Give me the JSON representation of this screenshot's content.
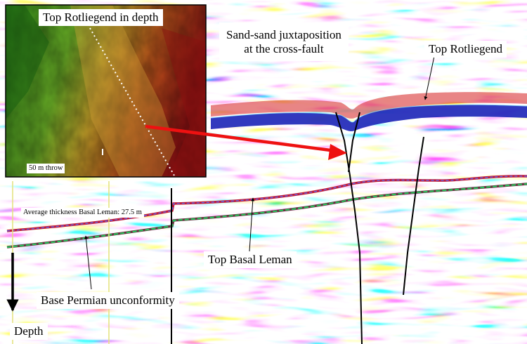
{
  "labels": {
    "inset_title": "Top Rotliegend in depth",
    "inset_scale": "50 m throw",
    "cross_fault_line1": "Sand-sand juxtaposition",
    "cross_fault_line2": "at the cross-fault",
    "top_rotliegend": "Top Rotliegend",
    "avg_thickness": "Average thickness Basal Leman: 27.5 m",
    "top_basal_leman": "Top Basal Leman",
    "base_permian": "Base Permian unconformity",
    "depth": "Depth"
  },
  "colors": {
    "positive_amplitude": "#d01818",
    "negative_amplitude": "#1030c0",
    "horizon_red": "#c01b3a",
    "horizon_green": "#22c75a",
    "arrow_red": "#ee1111",
    "well_marker": "#e4e27a"
  }
}
